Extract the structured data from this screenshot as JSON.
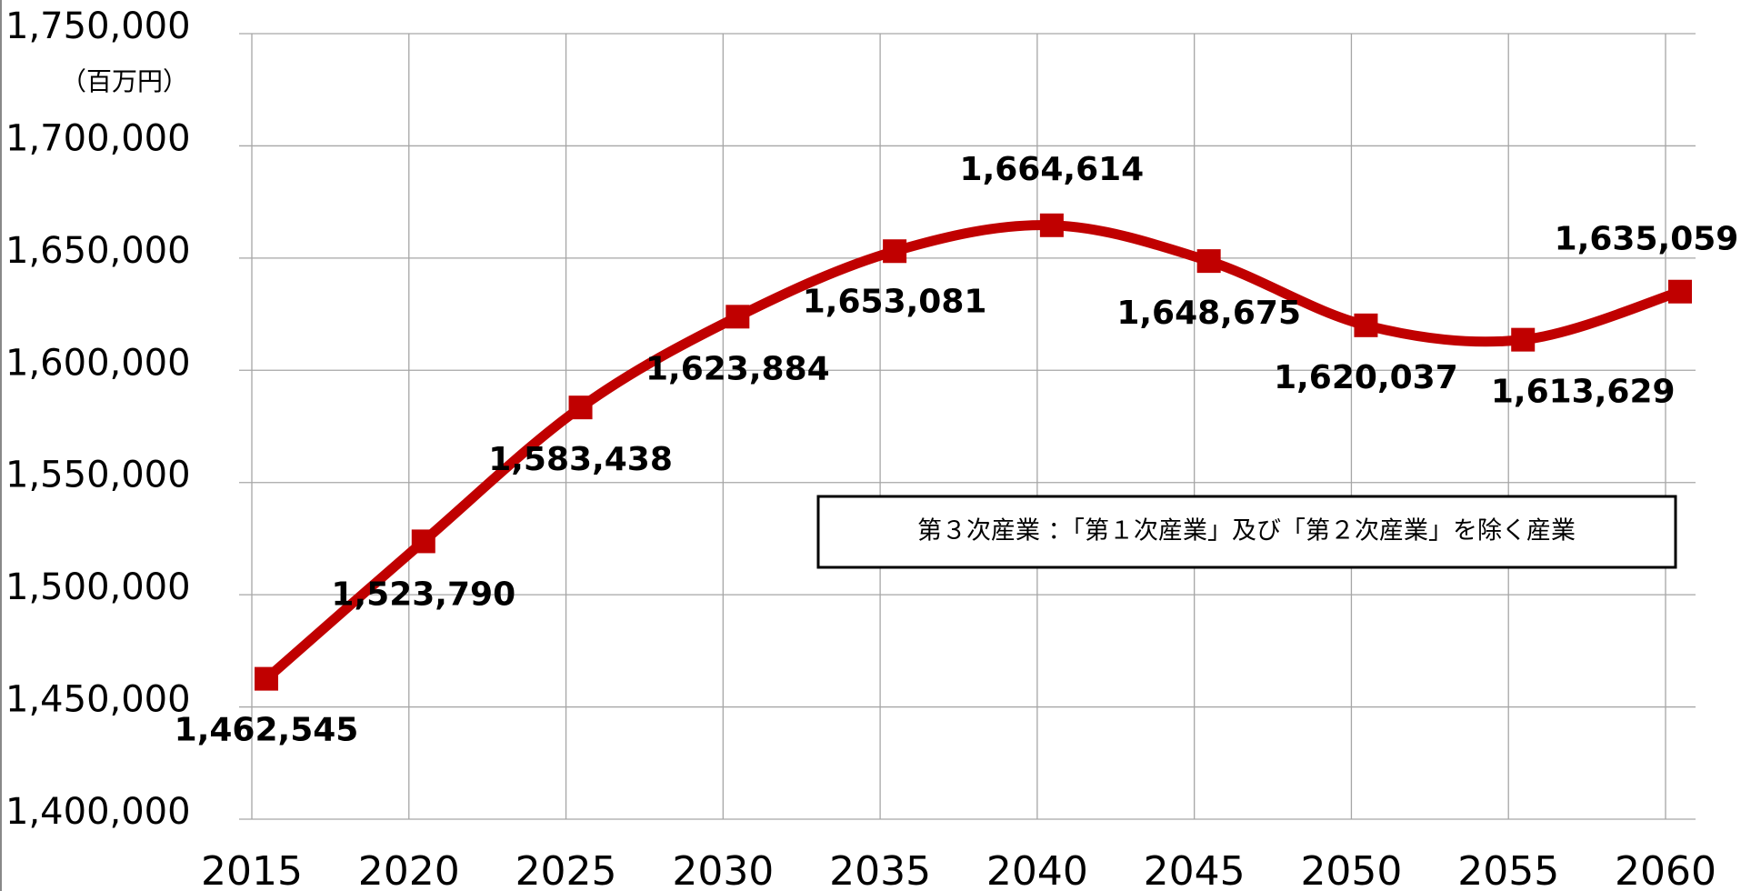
{
  "chart_data": {
    "type": "line",
    "y_axis_label": "（百万円）",
    "annotation": "第３次産業 ：「第１次産業」及び「第２次産業」を除く産業",
    "categories": [
      "2015",
      "2020",
      "2025",
      "2030",
      "2035",
      "2040",
      "2045",
      "2050",
      "2055",
      "2060"
    ],
    "series": [
      {
        "name": "第３次産業",
        "color": "#c00000",
        "values": [
          1462545,
          1523790,
          1583438,
          1623884,
          1653081,
          1664614,
          1648675,
          1620037,
          1613629,
          1635059
        ],
        "value_labels": [
          "1,462,545",
          "1,523,790",
          "1,583,438",
          "1,623,884",
          "1,653,081",
          "1,664,614",
          "1,648,675",
          "1,620,037",
          "1,613,629",
          "1,635,059"
        ]
      }
    ],
    "ylim": [
      1400000,
      1750000
    ],
    "yticks": [
      {
        "value": 1400000,
        "label": "1,400,000"
      },
      {
        "value": 1450000,
        "label": "1,450,000"
      },
      {
        "value": 1500000,
        "label": "1,500,000"
      },
      {
        "value": 1550000,
        "label": "1,550,000"
      },
      {
        "value": 1600000,
        "label": "1,600,000"
      },
      {
        "value": 1650000,
        "label": "1,650,000"
      },
      {
        "value": 1700000,
        "label": "1,700,000"
      },
      {
        "value": 1750000,
        "label": "1,750,000"
      }
    ],
    "grid": true
  }
}
